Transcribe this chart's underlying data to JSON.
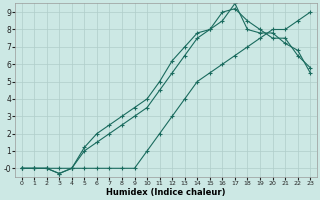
{
  "xlabel": "Humidex (Indice chaleur)",
  "bg_color": "#cce8e4",
  "line_color": "#1a6b5e",
  "grid_color": "#b0ceca",
  "xlim": [
    -0.5,
    23.5
  ],
  "ylim": [
    -0.5,
    9.5
  ],
  "xticks": [
    0,
    1,
    2,
    3,
    4,
    5,
    6,
    7,
    8,
    9,
    10,
    11,
    12,
    13,
    14,
    15,
    16,
    17,
    18,
    19,
    20,
    21,
    22,
    23
  ],
  "yticks": [
    0,
    1,
    2,
    3,
    4,
    5,
    6,
    7,
    8,
    9
  ],
  "line1_x": [
    0,
    1,
    2,
    3,
    4,
    5,
    6,
    7,
    8,
    9,
    10,
    11,
    12,
    13,
    14,
    15,
    16,
    17,
    18,
    19,
    20,
    21,
    22,
    23
  ],
  "line1_y": [
    0,
    0,
    0,
    0,
    0,
    0,
    0,
    0,
    0,
    0,
    1,
    2,
    3,
    4,
    5,
    5.5,
    6,
    6.5,
    7,
    7.5,
    8,
    8,
    8.5,
    9
  ],
  "line2_x": [
    0,
    1,
    2,
    3,
    4,
    5,
    6,
    7,
    8,
    9,
    10,
    11,
    12,
    13,
    14,
    15,
    16,
    17,
    18,
    19,
    20,
    21,
    22,
    23
  ],
  "line2_y": [
    0,
    0,
    0,
    -0.3,
    0,
    1,
    1.5,
    2,
    2.5,
    3,
    3.5,
    4.5,
    5.5,
    6.5,
    7.5,
    8,
    9,
    9.2,
    8.5,
    8,
    7.5,
    7.5,
    6.5,
    5.8
  ],
  "line3_x": [
    0,
    1,
    2,
    3,
    4,
    5,
    6,
    7,
    8,
    9,
    10,
    11,
    12,
    13,
    14,
    15,
    16,
    17,
    18,
    19,
    20,
    21,
    22,
    23
  ],
  "line3_y": [
    0,
    0,
    0,
    -0.3,
    0,
    1.2,
    2,
    2.5,
    3,
    3.5,
    4,
    5,
    6.2,
    7,
    7.8,
    8,
    8.5,
    9.5,
    8,
    7.8,
    7.8,
    7.2,
    6.8,
    5.5
  ]
}
